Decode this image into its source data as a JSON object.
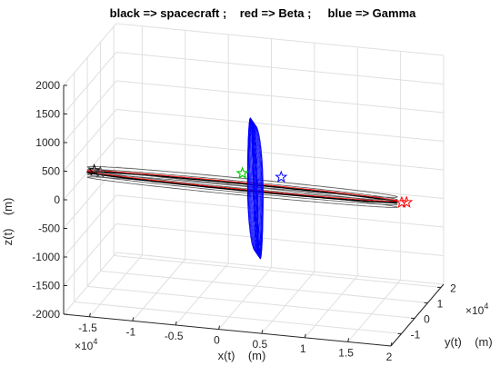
{
  "chart_data": {
    "type": "line",
    "title": "black => spacecraft ;    red => Beta ;     blue => Gamma",
    "xlabel": "x(t)    (m)",
    "ylabel": "y(t)    (m)",
    "zlabel": "z(t)    (m)",
    "x_ticks": [
      "-1.5",
      "-1",
      "-0.5",
      "0",
      "0.5",
      "1",
      "1.5",
      "2"
    ],
    "y_ticks": [
      "-1",
      "0",
      "1",
      "2"
    ],
    "z_ticks": [
      "-2000",
      "-1500",
      "-1000",
      "-500",
      "0",
      "500",
      "1000",
      "1500",
      "2000"
    ],
    "x_multiplier": "×10",
    "x_multiplier_exp": "4",
    "y_multiplier": "×10",
    "y_multiplier_exp": "4",
    "xlim": [
      -18000,
      20000
    ],
    "ylim": [
      -18000,
      22000
    ],
    "zlim": [
      -2000,
      2000
    ],
    "grid": true,
    "colors": {
      "spacecraft": "#000000",
      "beta": "#ff0000",
      "gamma": "#0000ff",
      "center_marker": "#00cc00"
    },
    "series": [
      {
        "name": "spacecraft",
        "orbit_x_semi_axis": 18000,
        "orbit_y_semi_axis": 2000,
        "z_range": [
          -100,
          100
        ]
      },
      {
        "name": "Beta",
        "orbit_x_semi_axis": 18000,
        "orbit_y_semi_axis": 2000
      },
      {
        "name": "Gamma",
        "orbit_x_semi_axis": 2000,
        "orbit_z_semi_axis": 1100,
        "z_range": [
          -1100,
          1100
        ]
      }
    ]
  }
}
